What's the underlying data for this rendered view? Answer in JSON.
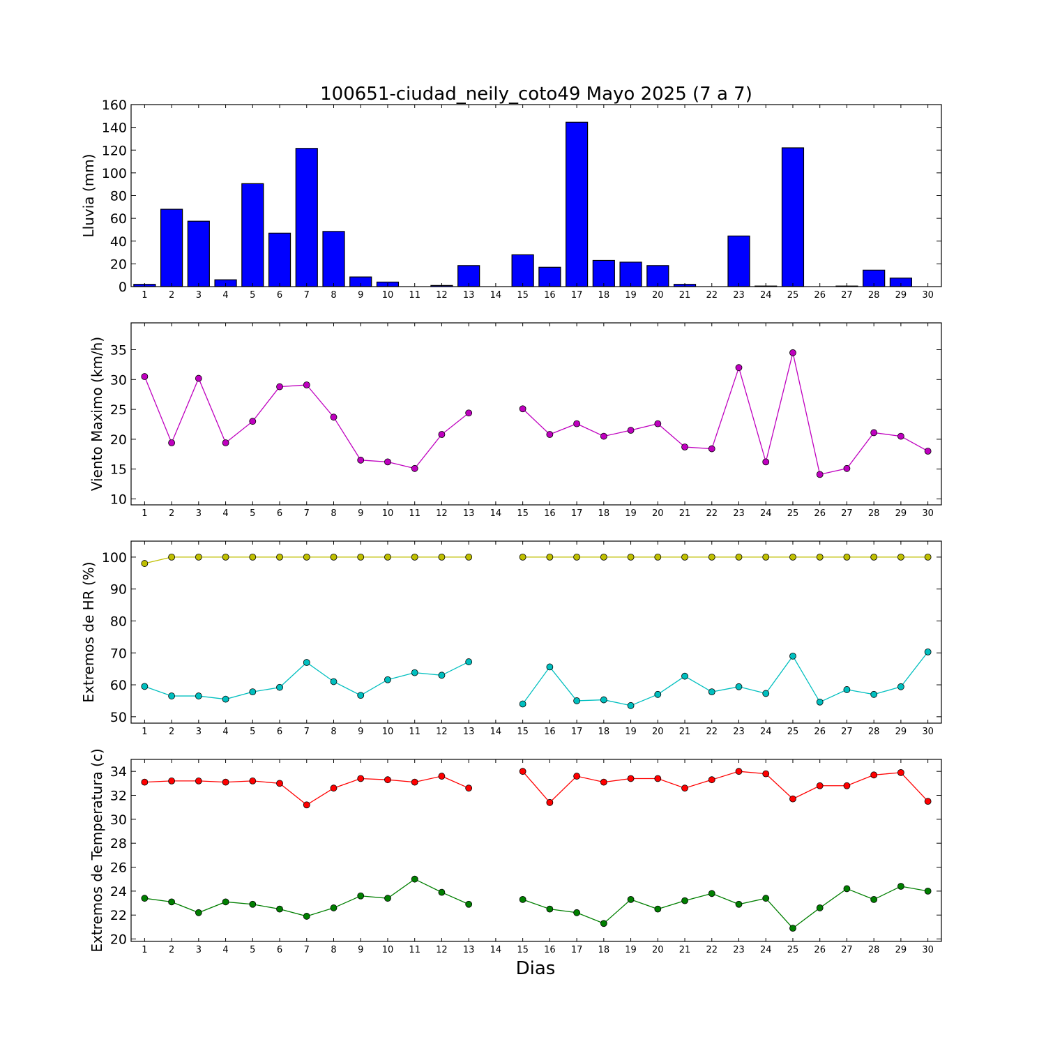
{
  "figure": {
    "title": "100651-ciudad_neily_coto49 Mayo 2025  (7 a 7)",
    "xlabel": "Dias"
  },
  "chart_data": [
    {
      "type": "bar",
      "ylabel": "Lluvia (mm)",
      "ylim": [
        0,
        160
      ],
      "yticks": [
        0,
        20,
        40,
        60,
        80,
        100,
        120,
        140,
        160
      ],
      "categories": [
        1,
        2,
        3,
        4,
        5,
        6,
        7,
        8,
        9,
        10,
        11,
        12,
        13,
        14,
        15,
        16,
        17,
        18,
        19,
        20,
        21,
        22,
        23,
        24,
        25,
        26,
        27,
        28,
        29,
        30
      ],
      "values": [
        2,
        68,
        57.5,
        6,
        90.5,
        47,
        121.5,
        48.5,
        8.5,
        4,
        0,
        1,
        18.5,
        null,
        28,
        17,
        144.5,
        23,
        21.5,
        18.5,
        2,
        0,
        44.5,
        0.5,
        122,
        0,
        0.5,
        14.5,
        7.5,
        0
      ],
      "color": "#0000ff"
    },
    {
      "type": "line",
      "ylabel": "Viento Maximo (km/h)",
      "ylim": [
        9,
        39.5
      ],
      "yticks": [
        10,
        15,
        20,
        25,
        30,
        35
      ],
      "x": [
        1,
        2,
        3,
        4,
        5,
        6,
        7,
        8,
        9,
        10,
        11,
        12,
        13,
        14,
        15,
        16,
        17,
        18,
        19,
        20,
        21,
        22,
        23,
        24,
        25,
        26,
        27,
        28,
        29,
        30
      ],
      "series": [
        {
          "values": [
            30.5,
            19.4,
            30.2,
            19.4,
            23,
            28.8,
            29.1,
            23.7,
            16.5,
            16.2,
            15.1,
            20.8,
            24.4,
            null,
            25.1,
            20.8,
            22.6,
            20.5,
            21.5,
            22.6,
            18.7,
            18.4,
            32,
            16.2,
            34.5,
            14.1,
            15.1,
            21.1,
            20.5,
            18
          ],
          "color": "#bf00bf"
        }
      ]
    },
    {
      "type": "line",
      "ylabel": "Extremos de HR (%)",
      "ylim": [
        48,
        105
      ],
      "yticks": [
        50,
        60,
        70,
        80,
        90,
        100
      ],
      "x": [
        1,
        2,
        3,
        4,
        5,
        6,
        7,
        8,
        9,
        10,
        11,
        12,
        13,
        14,
        15,
        16,
        17,
        18,
        19,
        20,
        21,
        22,
        23,
        24,
        25,
        26,
        27,
        28,
        29,
        30
      ],
      "series": [
        {
          "values": [
            98,
            100,
            100,
            100,
            100,
            100,
            100,
            100,
            100,
            100,
            100,
            100,
            100,
            null,
            100,
            100,
            100,
            100,
            100,
            100,
            100,
            100,
            100,
            100,
            100,
            100,
            100,
            100,
            100,
            100
          ],
          "color": "#bfbf00"
        },
        {
          "values": [
            59.5,
            56.5,
            56.5,
            55.5,
            57.8,
            59.2,
            67,
            61,
            56.7,
            61.6,
            63.8,
            63,
            67.2,
            null,
            54,
            65.6,
            55,
            55.3,
            53.5,
            57,
            62.7,
            57.8,
            59.4,
            57.3,
            69,
            54.6,
            58.5,
            57,
            59.4,
            70.3
          ],
          "color": "#00bfbf"
        }
      ]
    },
    {
      "type": "line",
      "ylabel": "Extremos de Temperatura (c)",
      "ylim": [
        19.8,
        35
      ],
      "yticks": [
        20,
        22,
        24,
        26,
        28,
        30,
        32,
        34
      ],
      "x": [
        1,
        2,
        3,
        4,
        5,
        6,
        7,
        8,
        9,
        10,
        11,
        12,
        13,
        14,
        15,
        16,
        17,
        18,
        19,
        20,
        21,
        22,
        23,
        24,
        25,
        26,
        27,
        28,
        29,
        30
      ],
      "series": [
        {
          "values": [
            33.1,
            33.2,
            33.2,
            33.1,
            33.2,
            33,
            31.2,
            32.6,
            33.4,
            33.3,
            33.1,
            33.6,
            32.6,
            null,
            34,
            31.4,
            33.6,
            33.1,
            33.4,
            33.4,
            32.6,
            33.3,
            34,
            33.8,
            31.7,
            32.8,
            32.8,
            33.7,
            33.9,
            31.5
          ],
          "color": "#ff0000"
        },
        {
          "values": [
            23.4,
            23.1,
            22.2,
            23.1,
            22.9,
            22.5,
            21.9,
            22.6,
            23.6,
            23.4,
            25,
            23.9,
            22.9,
            null,
            23.3,
            22.5,
            22.2,
            21.3,
            23.3,
            22.5,
            23.2,
            23.8,
            22.9,
            23.4,
            20.9,
            22.6,
            24.2,
            23.3,
            24.4,
            24
          ],
          "color": "#007f00"
        }
      ]
    }
  ]
}
